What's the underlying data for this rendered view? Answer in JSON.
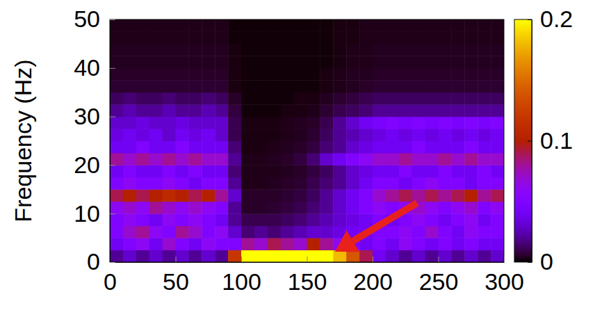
{
  "chart_data": {
    "type": "heatmap",
    "y_label": "Frequency (Hz)",
    "xlim": [
      0,
      300
    ],
    "xticks": [
      0,
      50,
      100,
      150,
      200,
      250,
      300
    ],
    "ylim": [
      0,
      50
    ],
    "yticks": [
      0,
      10,
      20,
      30,
      40,
      50
    ],
    "x_bins": [
      0,
      10,
      20,
      30,
      40,
      50,
      60,
      70,
      80,
      90,
      100,
      110,
      120,
      130,
      140,
      150,
      160,
      170,
      180,
      190,
      200,
      210,
      220,
      230,
      240,
      250,
      260,
      270,
      280,
      290,
      300
    ],
    "y_bins": [
      0,
      2.5,
      5,
      7.5,
      10,
      12.5,
      15,
      17.5,
      20,
      22.5,
      25,
      27.5,
      30,
      32.5,
      35,
      37.5,
      40,
      42.5,
      45,
      47.5,
      50
    ],
    "cells": [
      [
        0.02,
        0.03,
        0.02,
        0.03,
        0.02,
        0.03,
        0.02,
        0.03,
        0.02,
        0.12,
        0.2,
        0.2,
        0.2,
        0.2,
        0.2,
        0.2,
        0.2,
        0.18,
        0.14,
        0.09,
        0.04,
        0.03,
        0.02,
        0.03,
        0.02,
        0.03,
        0.02,
        0.03,
        0.02,
        0.03
      ],
      [
        0.04,
        0.05,
        0.06,
        0.04,
        0.07,
        0.05,
        0.04,
        0.06,
        0.05,
        0.05,
        0.08,
        0.07,
        0.09,
        0.08,
        0.07,
        0.1,
        0.08,
        0.06,
        0.05,
        0.04,
        0.05,
        0.04,
        0.06,
        0.05,
        0.04,
        0.05,
        0.04,
        0.05,
        0.04,
        0.04
      ],
      [
        0.05,
        0.07,
        0.08,
        0.06,
        0.05,
        0.08,
        0.07,
        0.05,
        0.06,
        0.03,
        0.015,
        0.02,
        0.015,
        0.02,
        0.025,
        0.03,
        0.03,
        0.035,
        0.04,
        0.04,
        0.05,
        0.05,
        0.06,
        0.05,
        0.07,
        0.05,
        0.04,
        0.06,
        0.05,
        0.05
      ],
      [
        0.05,
        0.06,
        0.05,
        0.04,
        0.06,
        0.05,
        0.06,
        0.05,
        0.04,
        0.02,
        0.01,
        0.01,
        0.01,
        0.012,
        0.015,
        0.02,
        0.025,
        0.03,
        0.035,
        0.04,
        0.05,
        0.04,
        0.05,
        0.06,
        0.05,
        0.04,
        0.05,
        0.06,
        0.04,
        0.05
      ],
      [
        0.06,
        0.07,
        0.06,
        0.08,
        0.07,
        0.06,
        0.07,
        0.06,
        0.05,
        0.02,
        0.005,
        0.005,
        0.006,
        0.008,
        0.01,
        0.015,
        0.02,
        0.03,
        0.04,
        0.05,
        0.06,
        0.05,
        0.06,
        0.07,
        0.06,
        0.05,
        0.06,
        0.07,
        0.05,
        0.06
      ],
      [
        0.09,
        0.1,
        0.09,
        0.1,
        0.11,
        0.1,
        0.09,
        0.1,
        0.08,
        0.03,
        0.005,
        0.005,
        0.005,
        0.006,
        0.008,
        0.012,
        0.02,
        0.03,
        0.04,
        0.05,
        0.07,
        0.08,
        0.09,
        0.08,
        0.09,
        0.08,
        0.09,
        0.1,
        0.08,
        0.09
      ],
      [
        0.05,
        0.06,
        0.05,
        0.05,
        0.06,
        0.05,
        0.04,
        0.05,
        0.05,
        0.02,
        0.003,
        0.003,
        0.004,
        0.005,
        0.006,
        0.01,
        0.015,
        0.02,
        0.03,
        0.04,
        0.05,
        0.05,
        0.04,
        0.05,
        0.06,
        0.05,
        0.05,
        0.04,
        0.05,
        0.05
      ],
      [
        0.04,
        0.05,
        0.04,
        0.04,
        0.05,
        0.04,
        0.05,
        0.04,
        0.04,
        0.015,
        0.003,
        0.003,
        0.003,
        0.004,
        0.005,
        0.008,
        0.012,
        0.02,
        0.03,
        0.035,
        0.04,
        0.04,
        0.05,
        0.04,
        0.04,
        0.05,
        0.04,
        0.04,
        0.05,
        0.04
      ],
      [
        0.08,
        0.07,
        0.08,
        0.07,
        0.08,
        0.07,
        0.08,
        0.07,
        0.07,
        0.02,
        0.003,
        0.003,
        0.004,
        0.005,
        0.008,
        0.015,
        0.03,
        0.04,
        0.05,
        0.06,
        0.07,
        0.07,
        0.08,
        0.07,
        0.07,
        0.08,
        0.07,
        0.08,
        0.07,
        0.07
      ],
      [
        0.04,
        0.04,
        0.05,
        0.04,
        0.04,
        0.05,
        0.04,
        0.04,
        0.04,
        0.015,
        0.002,
        0.002,
        0.003,
        0.004,
        0.005,
        0.008,
        0.015,
        0.02,
        0.03,
        0.035,
        0.04,
        0.04,
        0.04,
        0.05,
        0.04,
        0.04,
        0.04,
        0.05,
        0.04,
        0.04
      ],
      [
        0.035,
        0.04,
        0.035,
        0.04,
        0.03,
        0.04,
        0.035,
        0.04,
        0.03,
        0.01,
        0.002,
        0.002,
        0.002,
        0.003,
        0.004,
        0.006,
        0.012,
        0.02,
        0.025,
        0.03,
        0.035,
        0.04,
        0.035,
        0.04,
        0.035,
        0.04,
        0.035,
        0.04,
        0.035,
        0.04
      ],
      [
        0.03,
        0.03,
        0.035,
        0.03,
        0.03,
        0.035,
        0.03,
        0.03,
        0.03,
        0.01,
        0.002,
        0.002,
        0.002,
        0.003,
        0.004,
        0.005,
        0.01,
        0.02,
        0.03,
        0.04,
        0.045,
        0.05,
        0.045,
        0.05,
        0.045,
        0.05,
        0.045,
        0.05,
        0.045,
        0.05
      ],
      [
        0.02,
        0.025,
        0.02,
        0.02,
        0.025,
        0.02,
        0.02,
        0.025,
        0.02,
        0.008,
        0.001,
        0.001,
        0.001,
        0.002,
        0.002,
        0.003,
        0.006,
        0.01,
        0.012,
        0.015,
        0.02,
        0.02,
        0.02,
        0.02,
        0.02,
        0.02,
        0.02,
        0.02,
        0.02,
        0.02
      ],
      [
        0.012,
        0.015,
        0.012,
        0.012,
        0.015,
        0.012,
        0.012,
        0.015,
        0.012,
        0.005,
        0.001,
        0.001,
        0.001,
        0.001,
        0.002,
        0.002,
        0.004,
        0.006,
        0.008,
        0.01,
        0.012,
        0.012,
        0.012,
        0.012,
        0.012,
        0.012,
        0.012,
        0.012,
        0.012,
        0.012
      ],
      [
        0.006,
        0.006,
        0.006,
        0.006,
        0.006,
        0.006,
        0.006,
        0.006,
        0.006,
        0.002,
        0.001,
        0.001,
        0.001,
        0.001,
        0.001,
        0.001,
        0.002,
        0.003,
        0.004,
        0.005,
        0.006,
        0.006,
        0.006,
        0.006,
        0.006,
        0.006,
        0.006,
        0.006,
        0.006,
        0.006
      ],
      [
        0.005,
        0.005,
        0.005,
        0.005,
        0.005,
        0.005,
        0.005,
        0.005,
        0.005,
        0.002,
        0.001,
        0.001,
        0.001,
        0.001,
        0.001,
        0.001,
        0.002,
        0.003,
        0.004,
        0.004,
        0.005,
        0.005,
        0.005,
        0.005,
        0.005,
        0.005,
        0.005,
        0.005,
        0.005,
        0.005
      ],
      [
        0.004,
        0.004,
        0.004,
        0.004,
        0.004,
        0.004,
        0.004,
        0.004,
        0.004,
        0.002,
        0.001,
        0.001,
        0.001,
        0.001,
        0.001,
        0.001,
        0.001,
        0.002,
        0.003,
        0.003,
        0.004,
        0.004,
        0.004,
        0.004,
        0.004,
        0.004,
        0.004,
        0.004,
        0.004,
        0.004
      ],
      [
        0.004,
        0.004,
        0.004,
        0.004,
        0.004,
        0.004,
        0.004,
        0.004,
        0.004,
        0.002,
        0.001,
        0.001,
        0.001,
        0.001,
        0.001,
        0.001,
        0.001,
        0.002,
        0.003,
        0.003,
        0.004,
        0.004,
        0.004,
        0.004,
        0.004,
        0.004,
        0.004,
        0.004,
        0.004,
        0.004
      ],
      [
        0.003,
        0.003,
        0.003,
        0.003,
        0.003,
        0.003,
        0.003,
        0.003,
        0.003,
        0.001,
        0.001,
        0.001,
        0.001,
        0.001,
        0.001,
        0.001,
        0.001,
        0.002,
        0.002,
        0.003,
        0.003,
        0.003,
        0.003,
        0.003,
        0.003,
        0.003,
        0.003,
        0.003,
        0.003,
        0.003
      ],
      [
        0.003,
        0.003,
        0.003,
        0.003,
        0.003,
        0.003,
        0.003,
        0.003,
        0.003,
        0.001,
        0.001,
        0.001,
        0.001,
        0.001,
        0.001,
        0.001,
        0.001,
        0.002,
        0.002,
        0.003,
        0.003,
        0.003,
        0.003,
        0.003,
        0.003,
        0.003,
        0.003,
        0.003,
        0.003,
        0.003
      ]
    ],
    "colorbar": {
      "range": [
        0,
        0.2
      ],
      "ticks": [
        0,
        0.1,
        0.2
      ]
    }
  }
}
